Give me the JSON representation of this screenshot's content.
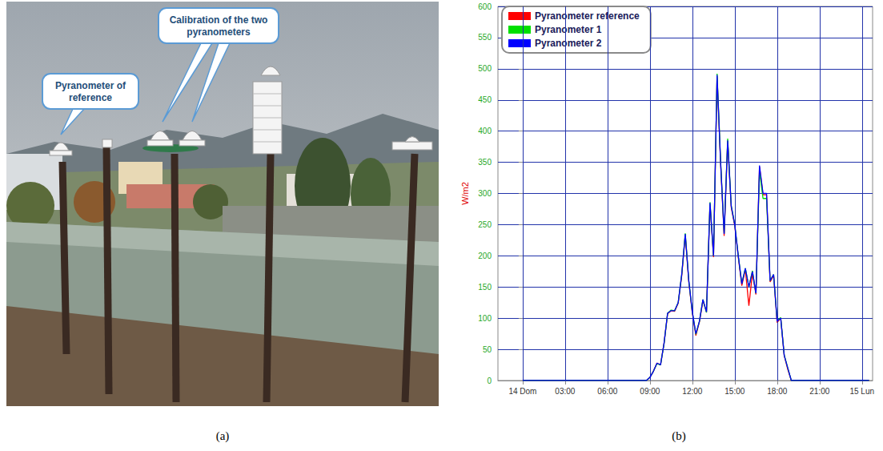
{
  "photo_panel": {
    "caption": "(a)",
    "callouts": [
      "Pyranometer of reference",
      "Calibration of the two pyranometers"
    ]
  },
  "chart_data": {
    "type": "line",
    "caption": "(b)",
    "ylabel": "W/m2",
    "x": [
      0,
      3,
      6,
      8.5,
      8.75,
      9,
      9.25,
      9.5,
      9.75,
      10,
      10.25,
      10.5,
      10.75,
      11,
      11.25,
      11.5,
      11.75,
      12,
      12.25,
      12.5,
      12.75,
      13,
      13.25,
      13.5,
      13.75,
      14,
      14.25,
      14.5,
      14.75,
      15,
      15.25,
      15.5,
      15.75,
      16,
      16.25,
      16.5,
      16.75,
      17,
      17.25,
      17.5,
      17.75,
      18,
      18.25,
      18.5,
      18.75,
      19,
      21,
      24,
      24.5
    ],
    "series": [
      {
        "name": "Pyranometer reference",
        "color": "#ff0000",
        "values": [
          0,
          0,
          0,
          0,
          0,
          5,
          15,
          28,
          25,
          60,
          107,
          112,
          111,
          124,
          168,
          233,
          158,
          108,
          72,
          94,
          128,
          110,
          283,
          198,
          488,
          348,
          232,
          384,
          278,
          248,
          198,
          152,
          178,
          120,
          172,
          138,
          343,
          298,
          298,
          158,
          168,
          93,
          100,
          40,
          18,
          0,
          0,
          0,
          0
        ]
      },
      {
        "name": "Pyranometer 1",
        "color": "#00e000",
        "values": [
          0,
          0,
          0,
          0,
          0,
          5,
          15,
          27,
          25,
          59,
          108,
          113,
          112,
          125,
          170,
          236,
          160,
          110,
          74,
          95,
          130,
          109,
          286,
          200,
          492,
          352,
          236,
          388,
          281,
          250,
          200,
          156,
          180,
          150,
          176,
          140,
          335,
          292,
          292,
          160,
          170,
          96,
          101,
          41,
          20,
          0,
          0,
          0,
          0
        ]
      },
      {
        "name": "Pyranometer 2",
        "color": "#0000ff",
        "values": [
          0,
          0,
          0,
          0,
          0,
          5,
          15,
          28,
          25,
          60,
          108,
          112,
          112,
          125,
          170,
          235,
          160,
          110,
          75,
          95,
          130,
          110,
          285,
          200,
          490,
          350,
          235,
          385,
          280,
          250,
          200,
          155,
          180,
          150,
          175,
          140,
          345,
          300,
          300,
          160,
          170,
          95,
          100,
          40,
          20,
          0,
          0,
          0,
          0
        ]
      }
    ],
    "xlim": [
      -1.75,
      24.75
    ],
    "xticks": [
      {
        "value": 0,
        "label": "14 Dom"
      },
      {
        "value": 3,
        "label": "03:00"
      },
      {
        "value": 6,
        "label": "06:00"
      },
      {
        "value": 9,
        "label": "09:00"
      },
      {
        "value": 12,
        "label": "12:00"
      },
      {
        "value": 15,
        "label": "15:00"
      },
      {
        "value": 18,
        "label": "18:00"
      },
      {
        "value": 21,
        "label": "21:00"
      },
      {
        "value": 24,
        "label": "15 Lun"
      }
    ],
    "ylim": [
      0,
      600
    ],
    "yticks": [
      0,
      50,
      100,
      150,
      200,
      250,
      300,
      350,
      400,
      450,
      500,
      550,
      600
    ],
    "grid": true,
    "legend": "top-left"
  }
}
